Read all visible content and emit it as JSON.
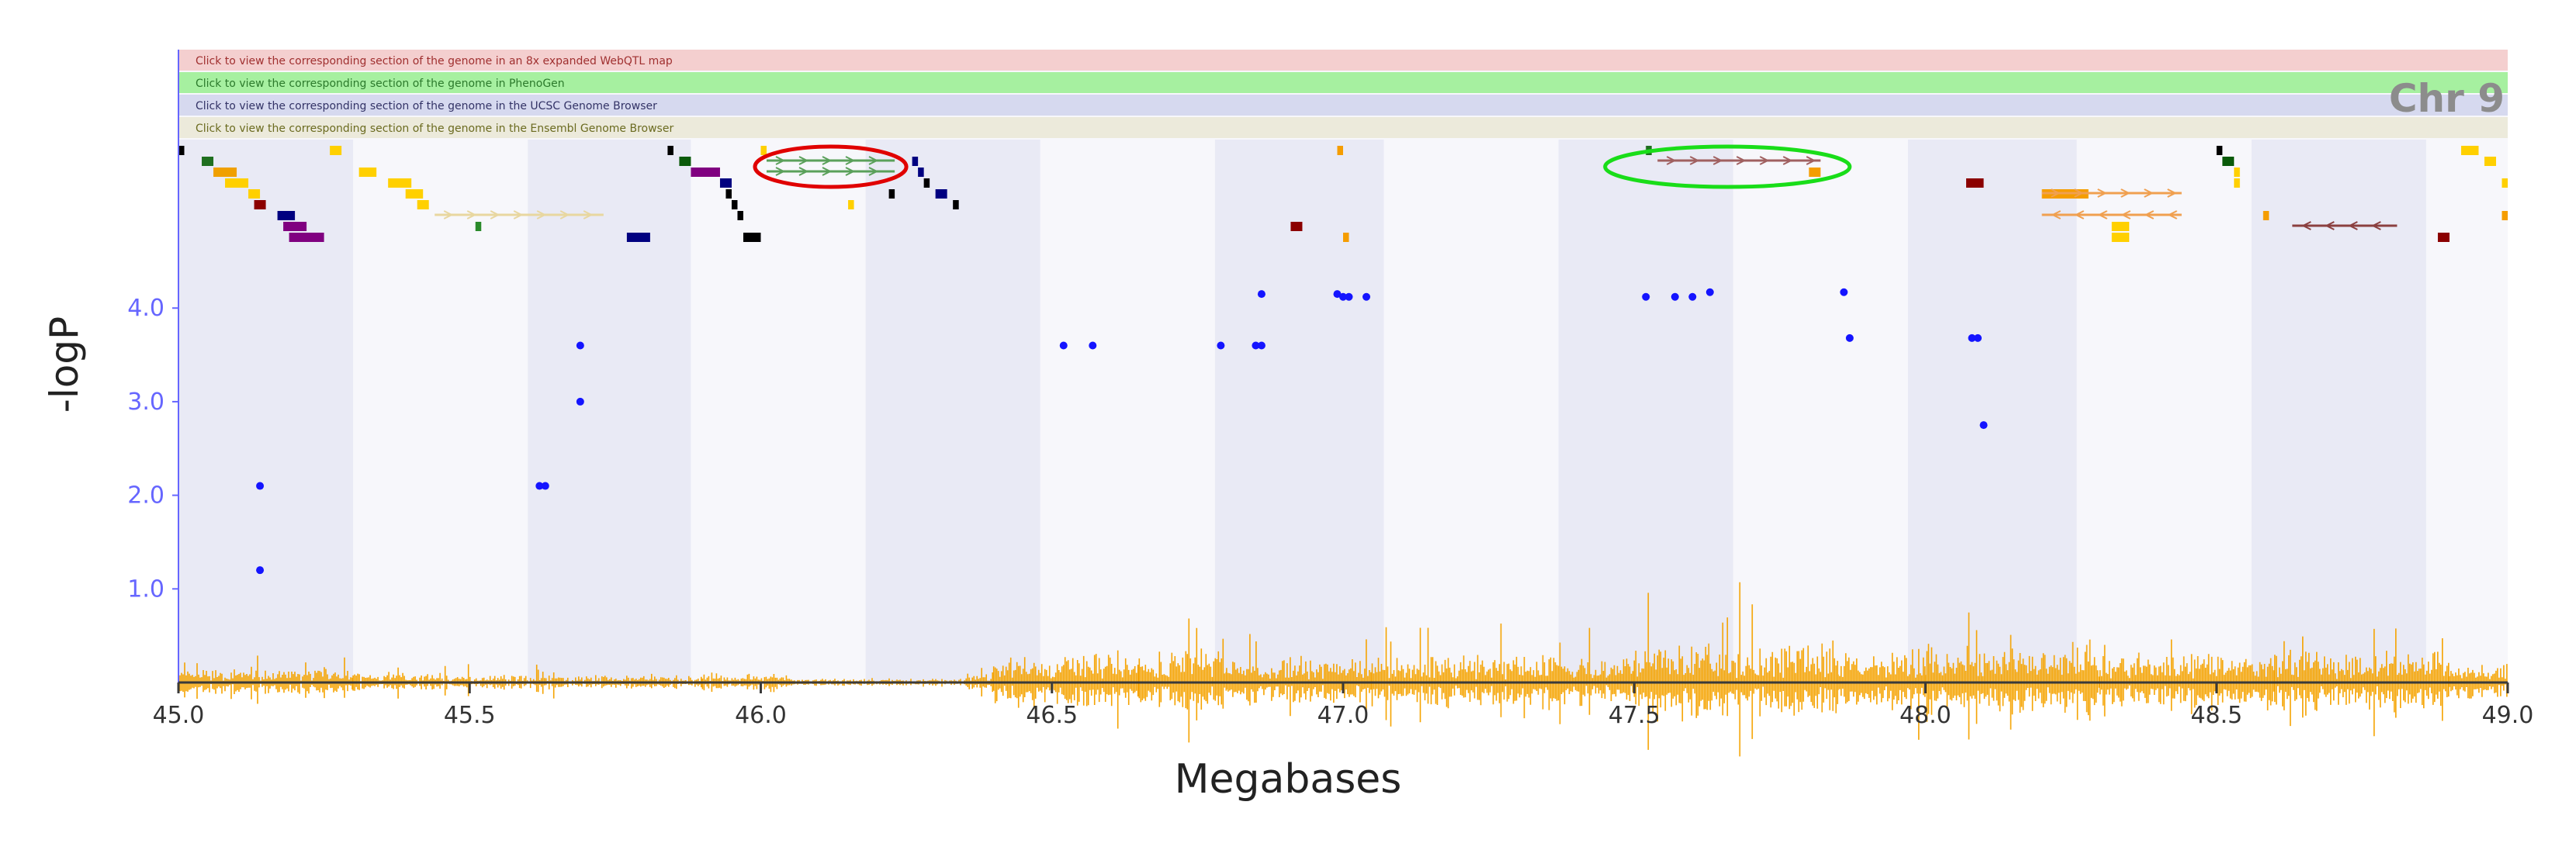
{
  "browser_links": [
    {
      "label": "Click to view the corresponding section of the genome in an 8x expanded WebQTL map",
      "color": "#f4cfcf",
      "text_color": "#a03030"
    },
    {
      "label": "Click to view the corresponding section of the genome in PhenoGen",
      "color": "#a6f0a0",
      "text_color": "#2c7a2c"
    },
    {
      "label": "Click to view the corresponding section of the genome in the UCSC Genome Browser",
      "color": "#d6d9ef",
      "text_color": "#333366"
    },
    {
      "label": "Click to view the corresponding section of the genome in the Ensembl Genome Browser",
      "color": "#eceadb",
      "text_color": "#6b6b20"
    }
  ],
  "chromosome_label": "Chr 9",
  "colors": {
    "band_dark": "#e9eaf5",
    "band_light": "#f7f7fb",
    "points": "#1414ff",
    "snp_density": "#f5a300",
    "axis": "#3a3a3a",
    "y_axis": "#6666ff",
    "red_highlight": "#e00000",
    "green_highlight": "#19dd19"
  },
  "chart_data": {
    "type": "scatter",
    "title": "",
    "xlabel": "Megabases",
    "ylabel": "-logP",
    "xlim": [
      45.0,
      49.0
    ],
    "ylim": [
      0,
      5.8
    ],
    "x_ticks": [
      "45.0",
      "45.5",
      "46.0",
      "46.5",
      "47.0",
      "47.5",
      "48.0",
      "48.5",
      "49.0"
    ],
    "y_ticks": [
      "1.0",
      "2.0",
      "3.0",
      "4.0"
    ],
    "grid": false,
    "legend": "none",
    "series": [
      {
        "points": [
          [
            45.14,
            1.2
          ],
          [
            45.14,
            2.1
          ],
          [
            45.62,
            2.1
          ],
          [
            45.63,
            2.1
          ],
          [
            45.69,
            3.0
          ],
          [
            45.69,
            3.6
          ],
          [
            46.52,
            3.6
          ],
          [
            46.57,
            3.6
          ],
          [
            46.79,
            3.6
          ],
          [
            46.85,
            3.6
          ],
          [
            46.86,
            3.6
          ],
          [
            46.86,
            4.15
          ],
          [
            46.99,
            4.15
          ],
          [
            47.0,
            4.12
          ],
          [
            47.01,
            4.12
          ],
          [
            47.04,
            4.12
          ],
          [
            47.52,
            4.12
          ],
          [
            47.57,
            4.12
          ],
          [
            47.6,
            4.12
          ],
          [
            47.63,
            4.17
          ],
          [
            47.86,
            4.17
          ],
          [
            47.87,
            3.68
          ],
          [
            48.08,
            3.68
          ],
          [
            48.09,
            3.68
          ],
          [
            48.1,
            2.75
          ]
        ]
      }
    ],
    "genes": [
      {
        "start": 45.0,
        "end": 45.01,
        "row": 0,
        "color": "#000000"
      },
      {
        "start": 45.04,
        "end": 45.06,
        "row": 1,
        "color": "#1f6f1f"
      },
      {
        "start": 45.06,
        "end": 45.1,
        "row": 2,
        "color": "#f0a000"
      },
      {
        "start": 45.08,
        "end": 45.12,
        "row": 3,
        "color": "#ffd000"
      },
      {
        "start": 45.12,
        "end": 45.14,
        "row": 4,
        "color": "#ffd000"
      },
      {
        "start": 45.13,
        "end": 45.15,
        "row": 5,
        "color": "#8b0000"
      },
      {
        "start": 45.17,
        "end": 45.2,
        "row": 6,
        "color": "#000080"
      },
      {
        "start": 45.18,
        "end": 45.22,
        "row": 7,
        "color": "#800080"
      },
      {
        "start": 45.19,
        "end": 45.25,
        "row": 8,
        "color": "#800080"
      },
      {
        "start": 45.26,
        "end": 45.28,
        "row": 0,
        "color": "#ffd000"
      },
      {
        "start": 45.31,
        "end": 45.34,
        "row": 2,
        "color": "#ffd000"
      },
      {
        "start": 45.36,
        "end": 45.4,
        "row": 3,
        "color": "#ffd000"
      },
      {
        "start": 45.39,
        "end": 45.42,
        "row": 4,
        "color": "#ffd000"
      },
      {
        "start": 45.41,
        "end": 45.43,
        "row": 5,
        "color": "#ffd000"
      },
      {
        "start": 45.44,
        "end": 45.73,
        "row": 6,
        "color": "#e8d7a0",
        "arrow": "right"
      },
      {
        "start": 45.51,
        "end": 45.52,
        "row": 7,
        "color": "#2a8a2a"
      },
      {
        "start": 45.77,
        "end": 45.81,
        "row": 8,
        "color": "#000080"
      },
      {
        "start": 45.84,
        "end": 45.85,
        "row": 0,
        "color": "#000000"
      },
      {
        "start": 45.86,
        "end": 45.88,
        "row": 1,
        "color": "#0a5a0a"
      },
      {
        "start": 45.88,
        "end": 45.93,
        "row": 2,
        "color": "#800080"
      },
      {
        "start": 45.93,
        "end": 45.95,
        "row": 3,
        "color": "#000080"
      },
      {
        "start": 45.94,
        "end": 45.95,
        "row": 4,
        "color": "#000000"
      },
      {
        "start": 45.95,
        "end": 45.96,
        "row": 5,
        "color": "#000000"
      },
      {
        "start": 45.96,
        "end": 45.97,
        "row": 6,
        "color": "#000000"
      },
      {
        "start": 45.97,
        "end": 46.0,
        "row": 8,
        "color": "#000000"
      },
      {
        "start": 46.01,
        "end": 46.23,
        "row": 1,
        "color": "#5aa05a",
        "arrow": "right"
      },
      {
        "start": 46.01,
        "end": 46.23,
        "row": 2,
        "color": "#5aa05a",
        "arrow": "right"
      },
      {
        "start": 46.22,
        "end": 46.23,
        "row": 4,
        "color": "#000000"
      },
      {
        "start": 46.26,
        "end": 46.27,
        "row": 1,
        "color": "#000080"
      },
      {
        "start": 46.27,
        "end": 46.28,
        "row": 2,
        "color": "#000080"
      },
      {
        "start": 46.28,
        "end": 46.29,
        "row": 3,
        "color": "#000000"
      },
      {
        "start": 46.3,
        "end": 46.32,
        "row": 4,
        "color": "#000080"
      },
      {
        "start": 46.33,
        "end": 46.34,
        "row": 5,
        "color": "#000000"
      },
      {
        "start": 46.0,
        "end": 46.01,
        "row": 0,
        "color": "#ffd000"
      },
      {
        "start": 46.15,
        "end": 46.16,
        "row": 5,
        "color": "#ffd000"
      },
      {
        "start": 46.99,
        "end": 47.0,
        "row": 0,
        "color": "#f59d00"
      },
      {
        "start": 46.91,
        "end": 46.93,
        "row": 7,
        "color": "#8b0000"
      },
      {
        "start": 47.0,
        "end": 47.01,
        "row": 8,
        "color": "#f59d00"
      },
      {
        "start": 47.52,
        "end": 47.53,
        "row": 0,
        "color": "#1f6f1f"
      },
      {
        "start": 47.54,
        "end": 47.82,
        "row": 1,
        "color": "#a06060",
        "arrow": "right"
      },
      {
        "start": 47.8,
        "end": 47.82,
        "row": 2,
        "color": "#f59d00"
      },
      {
        "start": 48.07,
        "end": 48.1,
        "row": 3,
        "color": "#8b0000"
      },
      {
        "start": 48.2,
        "end": 48.28,
        "row": 4,
        "color": "#f59d00"
      },
      {
        "start": 48.2,
        "end": 48.44,
        "row": 4,
        "color": "#f0a050",
        "arrow": "right"
      },
      {
        "start": 48.2,
        "end": 48.44,
        "row": 6,
        "color": "#f0a050",
        "arrow": "left"
      },
      {
        "start": 48.32,
        "end": 48.35,
        "row": 7,
        "color": "#ffd000"
      },
      {
        "start": 48.32,
        "end": 48.35,
        "row": 8,
        "color": "#ffd000"
      },
      {
        "start": 48.5,
        "end": 48.51,
        "row": 0,
        "color": "#000000"
      },
      {
        "start": 48.51,
        "end": 48.53,
        "row": 1,
        "color": "#0a5a0a"
      },
      {
        "start": 48.53,
        "end": 48.54,
        "row": 2,
        "color": "#ffd000"
      },
      {
        "start": 48.53,
        "end": 48.54,
        "row": 3,
        "color": "#ffd000"
      },
      {
        "start": 48.58,
        "end": 48.59,
        "row": 6,
        "color": "#f59d00"
      },
      {
        "start": 48.63,
        "end": 48.81,
        "row": 7,
        "color": "#8b4040",
        "arrow": "left"
      },
      {
        "start": 48.88,
        "end": 48.9,
        "row": 8,
        "color": "#8b0000"
      },
      {
        "start": 48.92,
        "end": 48.95,
        "row": 0,
        "color": "#ffd000"
      },
      {
        "start": 48.96,
        "end": 48.98,
        "row": 1,
        "color": "#ffd000"
      },
      {
        "start": 48.99,
        "end": 49.0,
        "row": 3,
        "color": "#ffd000"
      },
      {
        "start": 48.99,
        "end": 49.0,
        "row": 6,
        "color": "#f59d00"
      }
    ],
    "snp_density_segments": [
      {
        "start": 45.0,
        "end": 45.3,
        "level": 0.4
      },
      {
        "start": 45.3,
        "end": 45.45,
        "level": 0.3
      },
      {
        "start": 45.45,
        "end": 45.65,
        "level": 0.25
      },
      {
        "start": 45.65,
        "end": 45.9,
        "level": 0.2
      },
      {
        "start": 45.9,
        "end": 46.05,
        "level": 0.3
      },
      {
        "start": 46.05,
        "end": 46.35,
        "level": 0.12
      },
      {
        "start": 46.35,
        "end": 46.4,
        "level": 0.3
      },
      {
        "start": 46.4,
        "end": 46.65,
        "level": 0.9
      },
      {
        "start": 46.65,
        "end": 46.8,
        "level": 1.0
      },
      {
        "start": 46.8,
        "end": 47.05,
        "level": 0.75
      },
      {
        "start": 47.05,
        "end": 47.5,
        "level": 0.85
      },
      {
        "start": 47.5,
        "end": 47.85,
        "level": 1.3
      },
      {
        "start": 47.85,
        "end": 48.0,
        "level": 0.95
      },
      {
        "start": 48.0,
        "end": 48.3,
        "level": 1.2
      },
      {
        "start": 48.3,
        "end": 48.6,
        "level": 0.9
      },
      {
        "start": 48.6,
        "end": 48.9,
        "level": 1.0
      },
      {
        "start": 48.9,
        "end": 49.0,
        "level": 0.6
      }
    ],
    "highlights": [
      {
        "center_x": 46.12,
        "row": 1.5,
        "x_radius": 0.13,
        "color": "red"
      },
      {
        "center_x": 47.66,
        "row": 1.5,
        "x_radius": 0.21,
        "color": "green"
      }
    ],
    "bands": [
      [
        45.0,
        45.3
      ],
      [
        45.3,
        45.6
      ],
      [
        45.6,
        45.88
      ],
      [
        45.88,
        46.18
      ],
      [
        46.18,
        46.48
      ],
      [
        46.48,
        46.78
      ],
      [
        46.78,
        47.07
      ],
      [
        47.07,
        47.37
      ],
      [
        47.37,
        47.67
      ],
      [
        47.67,
        47.97
      ],
      [
        47.97,
        48.26
      ],
      [
        48.26,
        48.56
      ],
      [
        48.56,
        48.86
      ],
      [
        48.86,
        49.0
      ]
    ]
  }
}
